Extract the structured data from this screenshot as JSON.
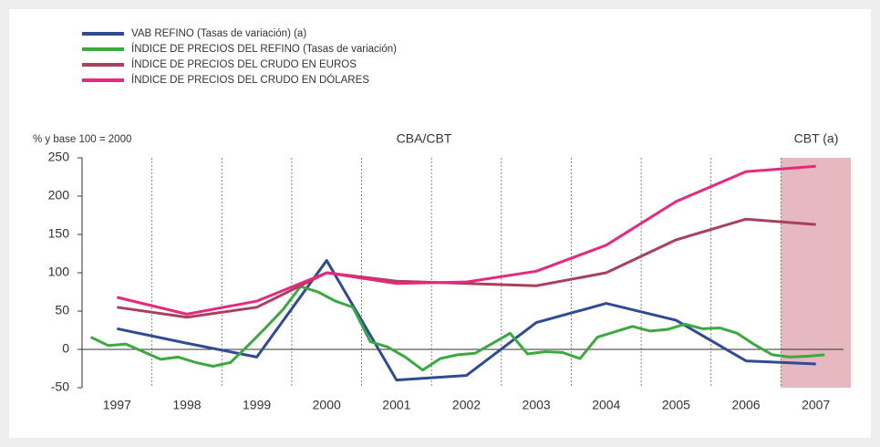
{
  "chart_data": {
    "type": "line",
    "y_label": "% y base 100 = 2000",
    "annotations": [
      "CBA/CBT",
      "CBT (a)"
    ],
    "shaded_region": [
      2006.5,
      2007.5
    ],
    "shaded_color": "#e6b8bf",
    "xlim": [
      1996.5,
      2007.5
    ],
    "xticks": [
      1997,
      1998,
      1999,
      2000,
      2001,
      2002,
      2003,
      2004,
      2005,
      2006,
      2007
    ],
    "ylim": [
      -50,
      250
    ],
    "yticks": [
      -50,
      0,
      50,
      100,
      150,
      200,
      250
    ],
    "series": [
      {
        "name": "VAB REFINO (Tasas de variación) (a)",
        "color": "#2f4b96",
        "x": [
          1997,
          1998,
          1999,
          2000,
          2001,
          2002,
          2003,
          2004,
          2005,
          2006,
          2007
        ],
        "values": [
          27,
          8,
          -10,
          116,
          -40,
          -34,
          35,
          60,
          38,
          -15,
          -19
        ]
      },
      {
        "name": "ÍNDICE DE PRECIOS DEL REFINO (Tasas de variación)",
        "color": "#3aaa3f",
        "x": [
          1996.625,
          1996.875,
          1997.125,
          1997.375,
          1997.625,
          1997.875,
          1998.125,
          1998.375,
          1998.625,
          1998.875,
          1999.125,
          1999.375,
          1999.625,
          1999.875,
          2000.125,
          2000.375,
          2000.625,
          2000.875,
          2001.125,
          2001.375,
          2001.625,
          2001.875,
          2002.125,
          2002.375,
          2002.625,
          2002.875,
          2003.125,
          2003.375,
          2003.625,
          2003.875,
          2004.125,
          2004.375,
          2004.625,
          2004.875,
          2005.125,
          2005.375,
          2005.625,
          2005.875,
          2006.125,
          2006.375,
          2006.625,
          2006.875,
          2007.125
        ],
        "values": [
          16,
          5,
          7,
          -3,
          -13,
          -10,
          -17,
          -22,
          -17,
          5,
          28,
          52,
          82,
          75,
          63,
          55,
          10,
          3,
          -10,
          -27,
          -12,
          -7,
          -5,
          8,
          21,
          -6,
          -3,
          -4,
          -12,
          16,
          23,
          30,
          24,
          26,
          33,
          27,
          28,
          21,
          6,
          -7,
          -10,
          -9,
          -7
        ]
      },
      {
        "name": "ÍNDICE DE PRECIOS DEL CRUDO EN EUROS",
        "color": "#a8405e",
        "x": [
          1997,
          1998,
          1999,
          2000,
          2001,
          2002,
          2003,
          2004,
          2005,
          2006,
          2007
        ],
        "values": [
          55,
          42,
          55,
          100,
          89,
          86,
          83,
          100,
          143,
          170,
          163
        ]
      },
      {
        "name": "ÍNDICE DE PRECIOS DEL CRUDO EN DÓLARES",
        "color": "#e8287f",
        "x": [
          1997,
          1998,
          1999,
          2000,
          2001,
          2002,
          2003,
          2004,
          2005,
          2006,
          2007
        ],
        "values": [
          68,
          46,
          63,
          100,
          86,
          88,
          102,
          136,
          193,
          232,
          239
        ]
      }
    ]
  }
}
